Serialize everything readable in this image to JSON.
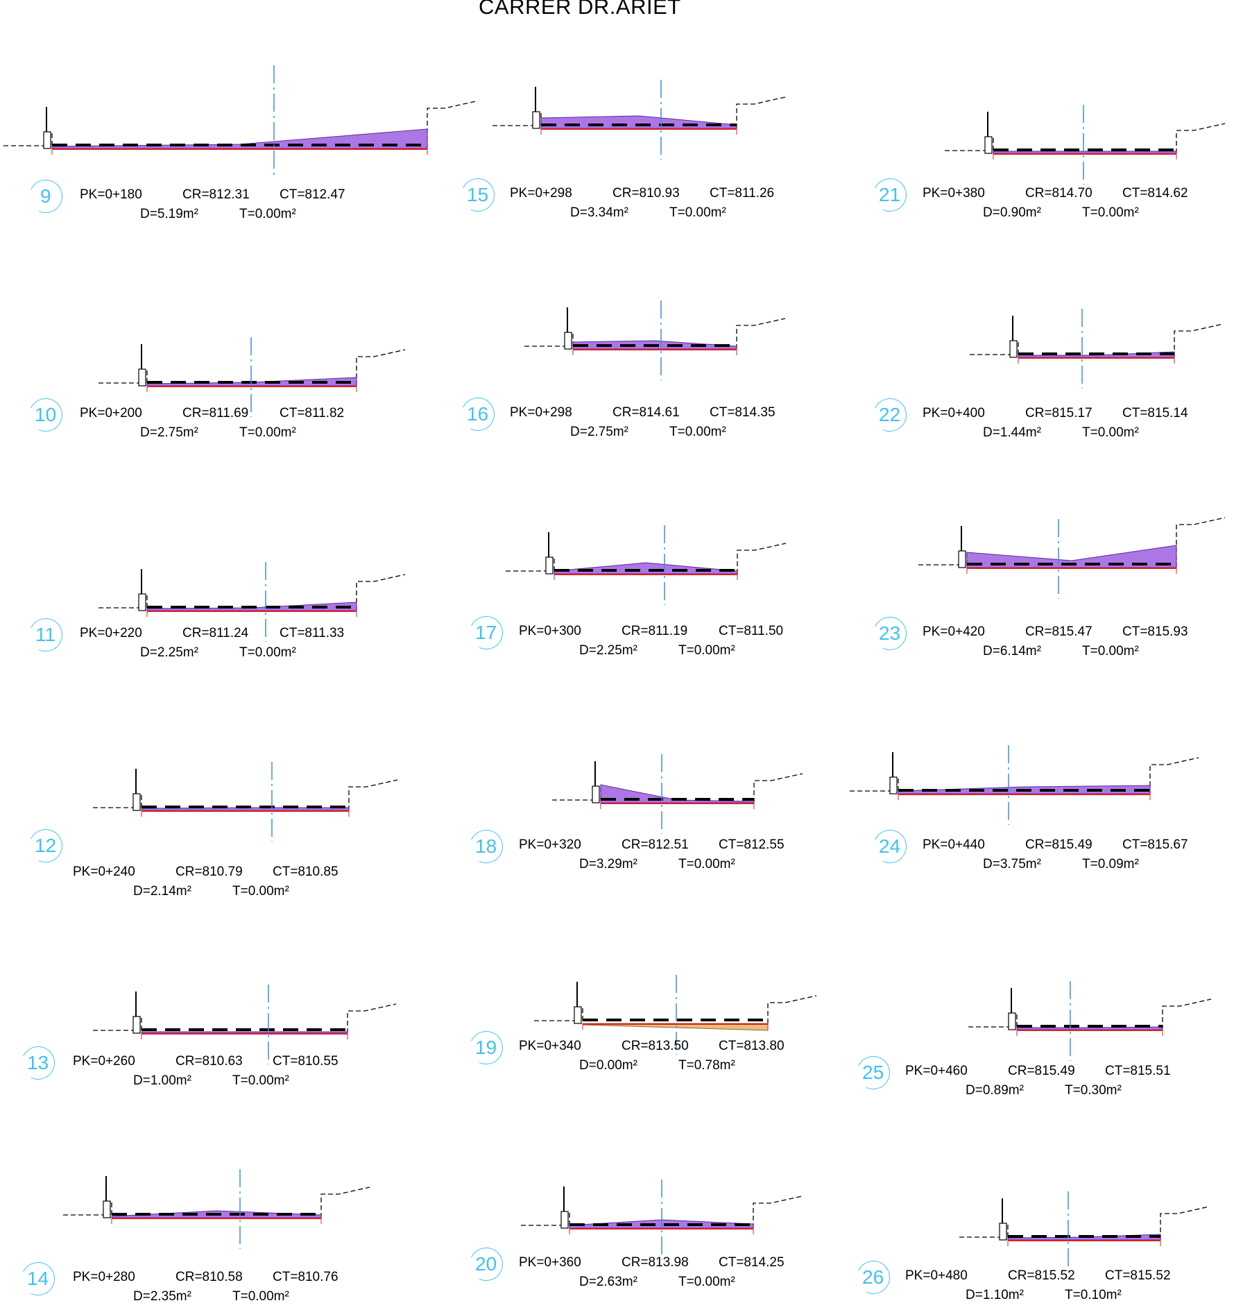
{
  "title": "CARRER DR.ARIET",
  "colors": {
    "cut_fill": "#9d5fe0",
    "fill_fill": "#e8c07a",
    "axis": "#3a8fd8",
    "label_circle": "#3fc3f0",
    "red_line": "#e02020"
  },
  "sections": [
    {
      "id": "9",
      "pk": "PK=0+180",
      "cr": "CR=812.31",
      "ct": "CT=812.47",
      "d": "D=5.19m²",
      "t": "T=0.00m²"
    },
    {
      "id": "10",
      "pk": "PK=0+200",
      "cr": "CR=811.69",
      "ct": "CT=811.82",
      "d": "D=2.75m²",
      "t": "T=0.00m²"
    },
    {
      "id": "11",
      "pk": "PK=0+220",
      "cr": "CR=811.24",
      "ct": "CT=811.33",
      "d": "D=2.25m²",
      "t": "T=0.00m²"
    },
    {
      "id": "12",
      "pk": "PK=0+240",
      "cr": "CR=810.79",
      "ct": "CT=810.85",
      "d": "D=2.14m²",
      "t": "T=0.00m²"
    },
    {
      "id": "13",
      "pk": "PK=0+260",
      "cr": "CR=810.63",
      "ct": "CT=810.55",
      "d": "D=1.00m²",
      "t": "T=0.00m²"
    },
    {
      "id": "14",
      "pk": "PK=0+280",
      "cr": "CR=810.58",
      "ct": "CT=810.76",
      "d": "D=2.35m²",
      "t": "T=0.00m²"
    },
    {
      "id": "15",
      "pk": "PK=0+298",
      "cr": "CR=810.93",
      "ct": "CT=811.26",
      "d": "D=3.34m²",
      "t": "T=0.00m²"
    },
    {
      "id": "16",
      "pk": "PK=0+298",
      "cr": "CR=814.61",
      "ct": "CT=814.35",
      "d": "D=2.75m²",
      "t": "T=0.00m²"
    },
    {
      "id": "17",
      "pk": "PK=0+300",
      "cr": "CR=811.19",
      "ct": "CT=811.50",
      "d": "D=2.25m²",
      "t": "T=0.00m²"
    },
    {
      "id": "18",
      "pk": "PK=0+320",
      "cr": "CR=812.51",
      "ct": "CT=812.55",
      "d": "D=3.29m²",
      "t": "T=0.00m²"
    },
    {
      "id": "19",
      "pk": "PK=0+340",
      "cr": "CR=813.50",
      "ct": "CT=813.80",
      "d": "D=0.00m²",
      "t": "T=0.78m²"
    },
    {
      "id": "20",
      "pk": "PK=0+360",
      "cr": "CR=813.98",
      "ct": "CT=814.25",
      "d": "D=2.63m²",
      "t": "T=0.00m²"
    },
    {
      "id": "21",
      "pk": "PK=0+380",
      "cr": "CR=814.70",
      "ct": "CT=814.62",
      "d": "D=0.90m²",
      "t": "T=0.00m²"
    },
    {
      "id": "22",
      "pk": "PK=0+400",
      "cr": "CR=815.17",
      "ct": "CT=815.14",
      "d": "D=1.44m²",
      "t": "T=0.00m²"
    },
    {
      "id": "23",
      "pk": "PK=0+420",
      "cr": "CR=815.47",
      "ct": "CT=815.93",
      "d": "D=6.14m²",
      "t": "T=0.00m²"
    },
    {
      "id": "24",
      "pk": "PK=0+440",
      "cr": "CR=815.49",
      "ct": "CT=815.67",
      "d": "D=3.75m²",
      "t": "T=0.09m²"
    },
    {
      "id": "25",
      "pk": "PK=0+460",
      "cr": "CR=815.49",
      "ct": "CT=815.51",
      "d": "D=0.89m²",
      "t": "T=0.30m²"
    },
    {
      "id": "26",
      "pk": "PK=0+480",
      "cr": "CR=815.52",
      "ct": "CT=815.52",
      "d": "D=1.10m²",
      "t": "T=0.10m²"
    }
  ]
}
